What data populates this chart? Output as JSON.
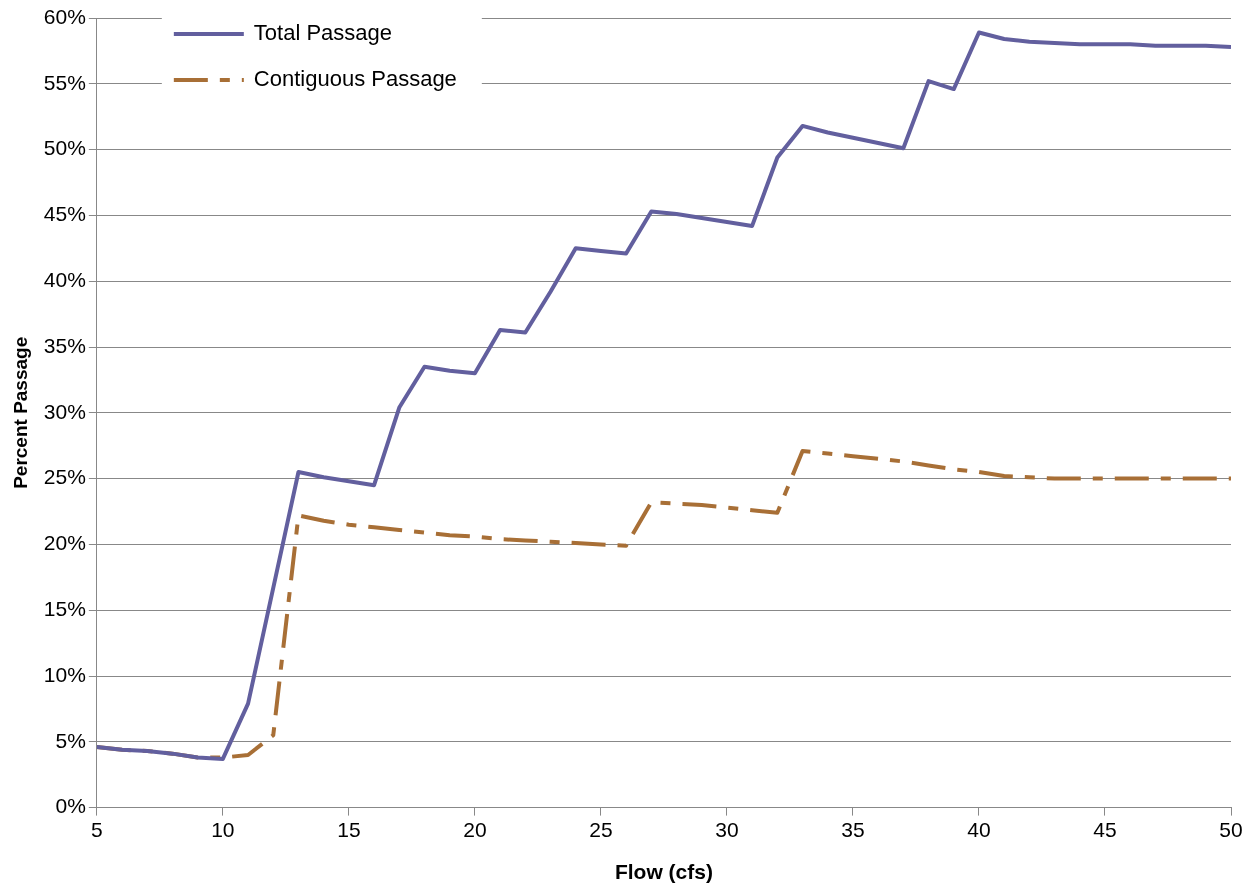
{
  "chart_data": {
    "type": "line",
    "xlabel": "Flow (cfs)",
    "ylabel": "Percent Passage",
    "x": [
      5,
      6,
      7,
      8,
      9,
      10,
      11,
      12,
      13,
      14,
      15,
      16,
      17,
      18,
      19,
      20,
      21,
      22,
      23,
      24,
      25,
      26,
      27,
      28,
      29,
      30,
      31,
      32,
      33,
      34,
      35,
      36,
      37,
      38,
      39,
      40,
      41,
      42,
      43,
      44,
      45,
      46,
      47,
      48,
      49,
      50
    ],
    "series": [
      {
        "name": "Total Passage",
        "color": "#625f9e",
        "line_style": "solid",
        "values": [
          4.6,
          4.4,
          4.3,
          4.1,
          3.8,
          3.7,
          7.9,
          16.7,
          25.5,
          25.1,
          24.8,
          24.5,
          30.4,
          33.5,
          33.2,
          33.0,
          36.3,
          36.1,
          39.2,
          42.5,
          42.3,
          42.1,
          45.3,
          45.1,
          44.8,
          44.5,
          44.2,
          49.4,
          51.8,
          51.3,
          50.9,
          50.5,
          50.1,
          55.2,
          54.6,
          58.9,
          58.4,
          58.2,
          58.1,
          58.0,
          58.0,
          58.0,
          57.9,
          57.9,
          57.9,
          57.8
        ]
      },
      {
        "name": "Contiguous Passage",
        "color": "#a86f36",
        "line_style": "dashed",
        "values": [
          4.6,
          4.4,
          4.3,
          4.1,
          3.8,
          3.8,
          4.0,
          5.5,
          22.2,
          21.8,
          21.5,
          21.3,
          21.1,
          20.9,
          20.7,
          20.6,
          20.4,
          20.3,
          20.2,
          20.1,
          20.0,
          19.9,
          23.2,
          23.1,
          23.0,
          22.8,
          22.6,
          22.4,
          27.1,
          26.9,
          26.7,
          26.5,
          26.3,
          26.0,
          25.7,
          25.5,
          25.2,
          25.1,
          25.0,
          25.0,
          25.0,
          25.0,
          25.0,
          25.0,
          25.0,
          25.0
        ]
      }
    ],
    "xlim": [
      5,
      50
    ],
    "xticks": [
      5,
      10,
      15,
      20,
      25,
      30,
      35,
      40,
      45,
      50
    ],
    "ylim": [
      0,
      60
    ],
    "yticks": [
      {
        "value": 0,
        "label": "0%"
      },
      {
        "value": 5,
        "label": "5%"
      },
      {
        "value": 10,
        "label": "10%"
      },
      {
        "value": 15,
        "label": "15%"
      },
      {
        "value": 20,
        "label": "20%"
      },
      {
        "value": 25,
        "label": "25%"
      },
      {
        "value": 30,
        "label": "30%"
      },
      {
        "value": 35,
        "label": "35%"
      },
      {
        "value": 40,
        "label": "40%"
      },
      {
        "value": 45,
        "label": "45%"
      },
      {
        "value": 50,
        "label": "50%"
      },
      {
        "value": 55,
        "label": "55%"
      },
      {
        "value": 60,
        "label": "60%"
      }
    ],
    "grid": "y",
    "legend": "top left",
    "marker": "none"
  }
}
